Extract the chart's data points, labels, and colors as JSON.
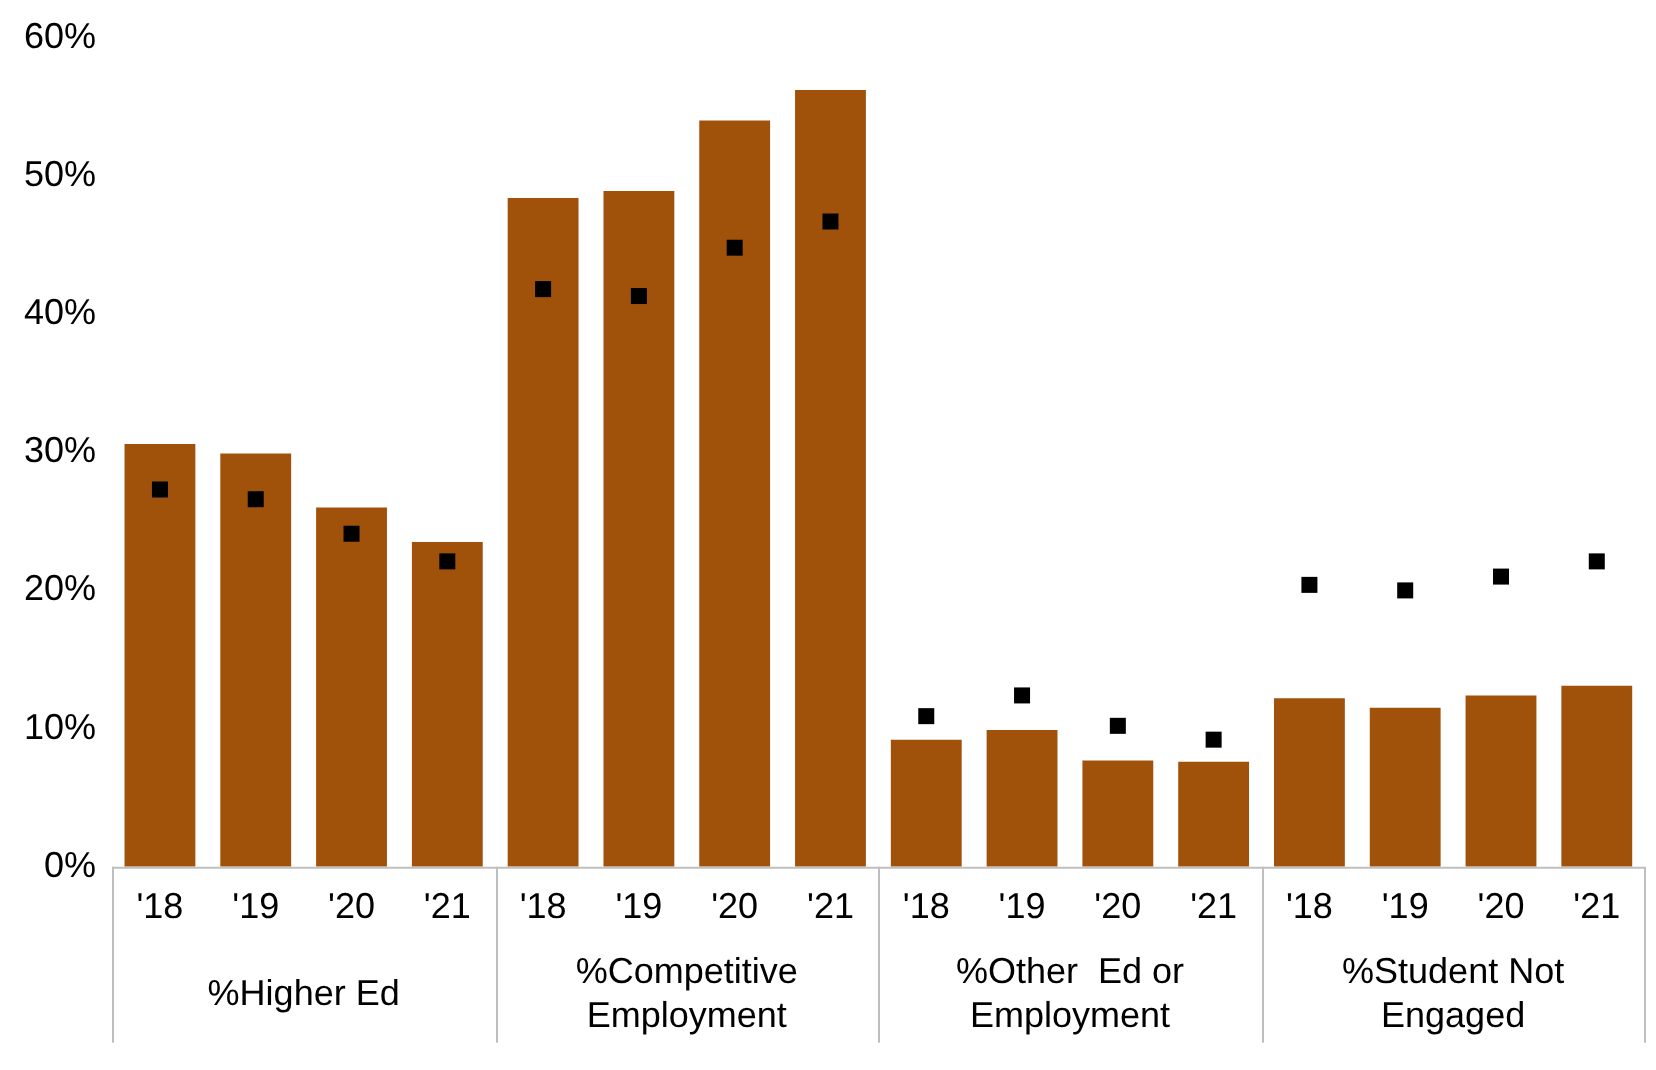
{
  "chart_data": {
    "type": "bar",
    "categories": [
      "'18",
      "'19",
      "'20",
      "'21",
      "'18",
      "'19",
      "'20",
      "'21",
      "'18",
      "'19",
      "'20",
      "'21",
      "'18",
      "'19",
      "'20",
      "'21"
    ],
    "series": [
      {
        "color": "#a0520a",
        "values": [
          30.6,
          29.9,
          26.0,
          23.5,
          48.4,
          48.9,
          54.0,
          56.2,
          9.2,
          9.9,
          7.7,
          7.6,
          12.2,
          11.5,
          12.4,
          13.1
        ]
      },
      {
        "type": "scatter",
        "marker": "square",
        "color": "#000000",
        "values": [
          27.3,
          26.6,
          24.1,
          22.1,
          41.8,
          41.3,
          44.8,
          46.7,
          10.9,
          12.4,
          10.2,
          9.2,
          20.4,
          20.0,
          21.0,
          22.1
        ]
      }
    ],
    "annotations": [
      "%Higher Ed",
      "%Competitive Employment",
      "%Other  Ed or Employment",
      "%Student Not Engaged"
    ],
    "ylim": [
      0,
      60
    ],
    "yticks": [
      {
        "value": 0,
        "label": "0%"
      },
      {
        "value": 10,
        "label": "10%"
      },
      {
        "value": 20,
        "label": "20%"
      },
      {
        "value": 30,
        "label": "30%"
      },
      {
        "value": 40,
        "label": "40%"
      },
      {
        "value": 50,
        "label": "50%"
      },
      {
        "value": 60,
        "label": "60%"
      }
    ],
    "grid": false,
    "legend": false
  }
}
